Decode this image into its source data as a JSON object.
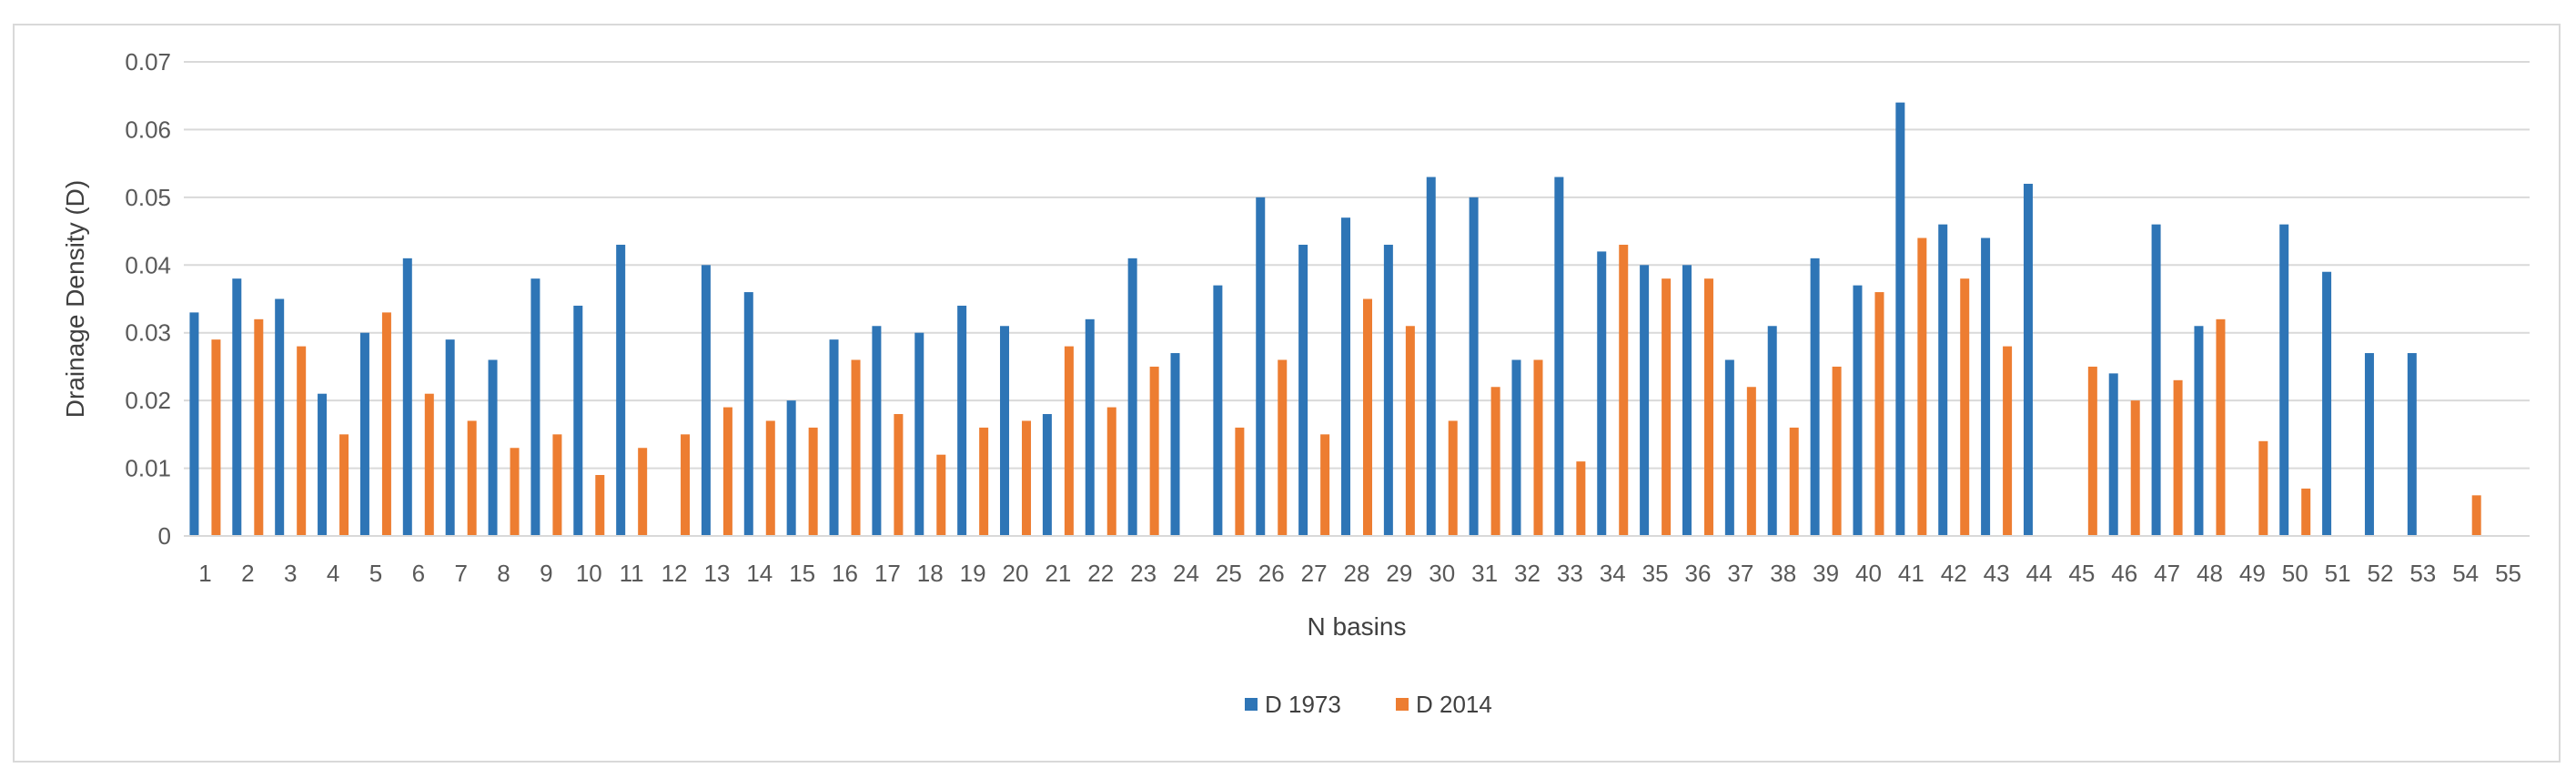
{
  "chart_data": {
    "type": "bar",
    "xlabel": "N basins",
    "ylabel": "Drainage Density (D)",
    "ylim": [
      0,
      0.07
    ],
    "yticks": [
      "0",
      "0.01",
      "0.02",
      "0.03",
      "0.04",
      "0.05",
      "0.06",
      "0.07"
    ],
    "grid": true,
    "legend_position": "bottom",
    "categories": [
      "1",
      "2",
      "3",
      "4",
      "5",
      "6",
      "7",
      "8",
      "9",
      "10",
      "11",
      "12",
      "13",
      "14",
      "15",
      "16",
      "17",
      "18",
      "19",
      "20",
      "21",
      "22",
      "23",
      "24",
      "25",
      "26",
      "27",
      "28",
      "29",
      "30",
      "31",
      "32",
      "33",
      "34",
      "35",
      "36",
      "37",
      "38",
      "39",
      "40",
      "41",
      "42",
      "43",
      "44",
      "45",
      "46",
      "47",
      "48",
      "49",
      "50",
      "51",
      "52",
      "53",
      "54",
      "55"
    ],
    "series": [
      {
        "name": "D 1973",
        "color": "#2e75b6",
        "values": [
          0.033,
          0.038,
          0.035,
          0.021,
          0.03,
          0.041,
          0.029,
          0.026,
          0.038,
          0.034,
          0.043,
          null,
          0.04,
          0.036,
          0.02,
          0.029,
          0.031,
          0.03,
          0.034,
          0.031,
          0.018,
          0.032,
          0.041,
          0.027,
          0.037,
          0.05,
          0.043,
          0.047,
          0.043,
          0.053,
          0.05,
          0.026,
          0.053,
          0.042,
          0.04,
          0.04,
          0.026,
          0.031,
          0.041,
          0.037,
          0.064,
          0.046,
          0.044,
          0.052,
          null,
          0.024,
          0.046,
          0.031,
          null,
          0.046,
          0.039,
          0.027,
          0.027,
          null,
          null
        ]
      },
      {
        "name": "D 2014",
        "color": "#ed7d31",
        "values": [
          0.029,
          0.032,
          0.028,
          0.015,
          0.033,
          0.021,
          0.017,
          0.013,
          0.015,
          0.009,
          0.013,
          0.015,
          0.019,
          0.017,
          0.016,
          0.026,
          0.018,
          0.012,
          0.016,
          0.017,
          0.028,
          0.019,
          0.025,
          null,
          0.016,
          0.026,
          0.015,
          0.035,
          0.031,
          0.017,
          0.022,
          0.026,
          0.011,
          0.043,
          0.038,
          0.038,
          0.022,
          0.016,
          0.025,
          0.036,
          0.044,
          0.038,
          0.028,
          null,
          0.025,
          0.02,
          0.023,
          0.032,
          0.014,
          0.007,
          null,
          null,
          null,
          0.006,
          null
        ]
      }
    ]
  }
}
